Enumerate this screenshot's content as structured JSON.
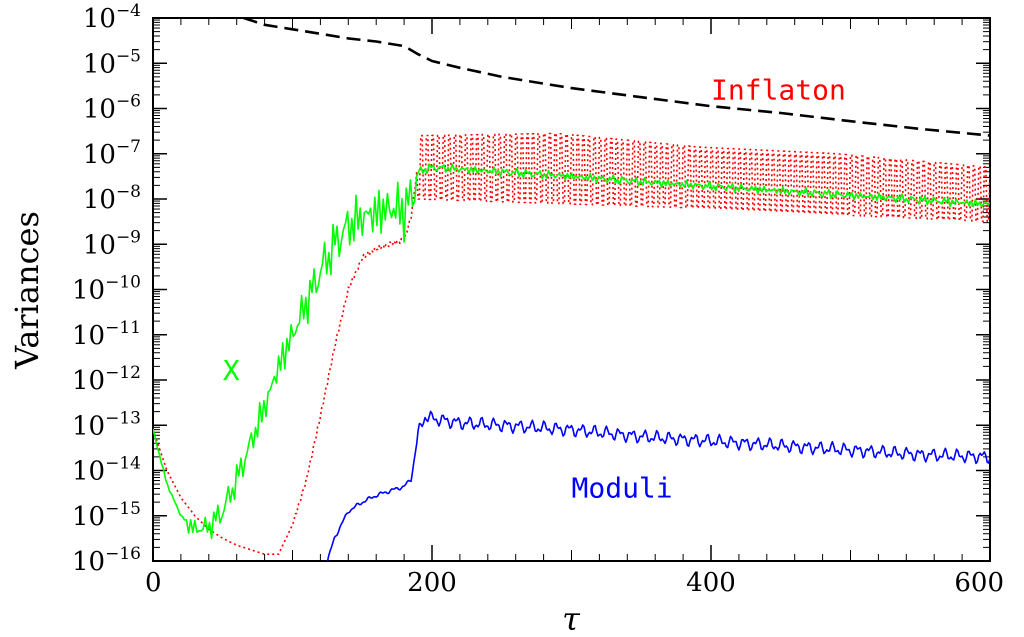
{
  "chart_data": {
    "type": "line",
    "xlabel": "τ",
    "ylabel": "Variances",
    "xlim": [
      0,
      600
    ],
    "ylim_exp": [
      -16,
      -4
    ],
    "log_y": true,
    "grid": false,
    "x_ticks": [
      {
        "value": 0,
        "label": "0"
      },
      {
        "value": 200,
        "label": "200"
      },
      {
        "value": 400,
        "label": "400"
      },
      {
        "value": 600,
        "label": "600"
      }
    ],
    "y_ticks": [
      {
        "value": -16,
        "base": "10",
        "exp": "−16"
      },
      {
        "value": -15,
        "base": "10",
        "exp": "−15"
      },
      {
        "value": -14,
        "base": "10",
        "exp": "−14"
      },
      {
        "value": -13,
        "base": "10",
        "exp": "−13"
      },
      {
        "value": -12,
        "base": "10",
        "exp": "−12"
      },
      {
        "value": -11,
        "base": "10",
        "exp": "−11"
      },
      {
        "value": -10,
        "base": "10",
        "exp": "−10"
      },
      {
        "value": -9,
        "base": "10",
        "exp": "−9"
      },
      {
        "value": -8,
        "base": "10",
        "exp": "−8"
      },
      {
        "value": -7,
        "base": "10",
        "exp": "−7"
      },
      {
        "value": -6,
        "base": "10",
        "exp": "−6"
      },
      {
        "value": -5,
        "base": "10",
        "exp": "−5"
      },
      {
        "value": -4,
        "base": "10",
        "exp": "−4"
      }
    ],
    "annotations": [
      {
        "text": "Inflaton",
        "tau": 400,
        "log10": -5.8,
        "color": "#ff0000"
      },
      {
        "text": "X",
        "tau": 50,
        "log10": -12.0,
        "color": "#00ff00"
      },
      {
        "text": "Moduli",
        "tau": 300,
        "log10": -14.6,
        "color": "#0000ff"
      }
    ],
    "series": [
      {
        "key": "dashed",
        "color": "#000000",
        "style": "dashed",
        "x": [
          65,
          80,
          100,
          120,
          140,
          160,
          180,
          190,
          200,
          220,
          250,
          280,
          300,
          350,
          400,
          450,
          500,
          550,
          600
        ],
        "y": [
          -4.0,
          -4.15,
          -4.25,
          -4.35,
          -4.45,
          -4.52,
          -4.62,
          -4.8,
          -4.95,
          -5.1,
          -5.3,
          -5.45,
          -5.55,
          -5.75,
          -5.95,
          -6.1,
          -6.28,
          -6.45,
          -6.6
        ]
      },
      {
        "key": "inflaton",
        "name": "Inflaton",
        "color": "#ff0000",
        "style": "dotted",
        "x": [
          0,
          10,
          20,
          30,
          40,
          50,
          60,
          70,
          80,
          90,
          100,
          110,
          120,
          130,
          140,
          150,
          160,
          170,
          180,
          185,
          190,
          200,
          250,
          300,
          350,
          400,
          450,
          500,
          550,
          600
        ],
        "y": [
          -13.1,
          -14.0,
          -14.6,
          -15.0,
          -15.3,
          -15.5,
          -15.65,
          -15.75,
          -15.85,
          -15.85,
          -15.2,
          -14.2,
          -12.8,
          -11.3,
          -10.0,
          -9.3,
          -9.1,
          -9.0,
          -8.9,
          -8.4,
          -7.2,
          -7.2,
          -7.2,
          -7.25,
          -7.35,
          -7.45,
          -7.55,
          -7.7,
          -7.8,
          -7.9
        ],
        "band_from": 190,
        "band_to": 600,
        "band_lower": [
          -8.0,
          -8.1,
          -8.2,
          -8.35,
          -8.5
        ],
        "band_upper": [
          -6.6,
          -6.55,
          -6.85,
          -7.0,
          -7.3
        ]
      },
      {
        "key": "x",
        "name": "X",
        "color": "#00ff00",
        "style": "solid",
        "x": [
          0,
          10,
          20,
          30,
          40,
          50,
          60,
          70,
          80,
          90,
          100,
          110,
          120,
          130,
          140,
          150,
          160,
          170,
          180,
          185,
          190,
          200,
          250,
          300,
          350,
          400,
          450,
          500,
          550,
          600
        ],
        "y": [
          -13.1,
          -14.3,
          -15.0,
          -15.3,
          -15.25,
          -14.9,
          -14.2,
          -13.4,
          -12.6,
          -11.7,
          -11.0,
          -10.3,
          -9.6,
          -9.0,
          -8.6,
          -8.4,
          -8.3,
          -8.2,
          -8.25,
          -8.0,
          -7.4,
          -7.3,
          -7.4,
          -7.5,
          -7.62,
          -7.72,
          -7.82,
          -7.92,
          -8.02,
          -8.12
        ]
      },
      {
        "key": "moduli",
        "name": "Moduli",
        "color": "#0000ff",
        "style": "solid",
        "x": [
          125,
          130,
          135,
          140,
          150,
          160,
          170,
          180,
          185,
          190,
          195,
          200,
          220,
          250,
          300,
          350,
          400,
          450,
          500,
          550,
          600
        ],
        "y": [
          -16.0,
          -15.5,
          -15.2,
          -14.9,
          -14.7,
          -14.55,
          -14.45,
          -14.35,
          -14.2,
          -13.2,
          -12.8,
          -12.85,
          -12.95,
          -13.0,
          -13.1,
          -13.25,
          -13.35,
          -13.45,
          -13.55,
          -13.65,
          -13.7
        ]
      }
    ]
  }
}
